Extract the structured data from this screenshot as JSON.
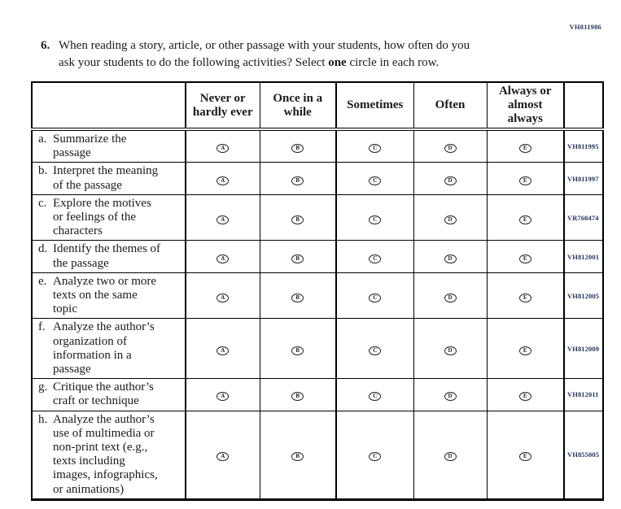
{
  "page": {
    "form_code": "VH811986"
  },
  "question": {
    "number": "6.",
    "text_part1": "When reading a story, article, or other passage with your students, how often do you\nask your students to do the following activities? Select ",
    "bold_word": "one",
    "text_part2": " circle in each row."
  },
  "table": {
    "headers": [
      "",
      "Never or\nhardly ever",
      "Once in a\nwhile",
      "Sometimes",
      "Often",
      "Always or\nalmost\nalways",
      ""
    ],
    "option_letters": [
      "A",
      "B",
      "C",
      "D",
      "E"
    ],
    "rows": [
      {
        "letter": "a.",
        "label": "Summarize the\npassage",
        "code": "VH811995"
      },
      {
        "letter": "b.",
        "label": "Interpret the meaning\nof the passage",
        "code": "VH811997"
      },
      {
        "letter": "c.",
        "label": "Explore the motives\nor feelings of the\ncharacters",
        "code": "VR760474"
      },
      {
        "letter": "d.",
        "label": "Identify the themes of\nthe passage",
        "code": "VH812001"
      },
      {
        "letter": "e.",
        "label": "Analyze two or more\ntexts on the same\ntopic",
        "code": "VH812005"
      },
      {
        "letter": "f.",
        "label": "Analyze the author’s\norganization of\ninformation in a\npassage",
        "code": "VH812009"
      },
      {
        "letter": "g.",
        "label": "Critique the author’s\ncraft or technique",
        "code": "VH812011"
      },
      {
        "letter": "h.",
        "label": "Analyze the author’s\nuse of multimedia or\nnon-print text (e.g.,\ntexts including\nimages, infographics,\nor animations)",
        "code": "VH855005"
      }
    ]
  },
  "colors": {
    "code_text": "#25355a",
    "border": "#000000",
    "text": "#1a1a1a"
  }
}
